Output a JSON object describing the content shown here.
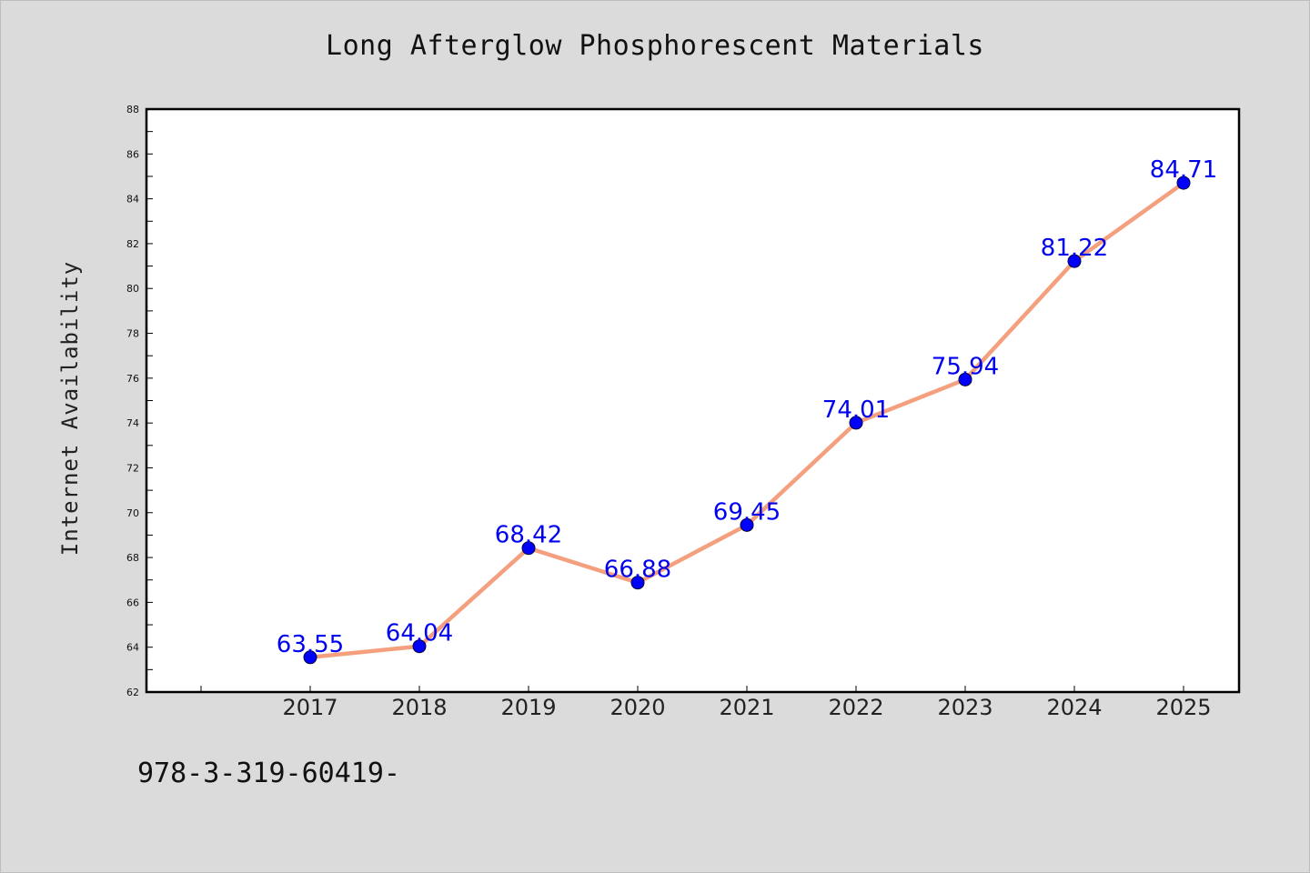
{
  "chart_data": {
    "type": "line",
    "title": "Long Afterglow Phosphorescent Materials",
    "xlabel": "",
    "ylabel": "Internet Availability",
    "x": [
      "2017",
      "2018",
      "2019",
      "2020",
      "2021",
      "2022",
      "2023",
      "2024",
      "2025"
    ],
    "series": [
      {
        "values": [
          63.55,
          64.04,
          68.42,
          66.88,
          69.45,
          74.01,
          75.94,
          81.22,
          84.71
        ],
        "data_labels": [
          "63.55",
          "64.04",
          "68.42",
          "66.88",
          "69.45",
          "74.01",
          "75.94",
          "81.22",
          "84.71"
        ],
        "line_color": "#f4a07e",
        "marker_color": "#0000ff"
      }
    ],
    "ylim": [
      62,
      88
    ],
    "yticks": [
      "62",
      "64",
      "66",
      "68",
      "70",
      "72",
      "74",
      "76",
      "78",
      "80",
      "82",
      "84",
      "86",
      "88"
    ],
    "grid": false,
    "legend": "none",
    "background": "#dbdbdb",
    "plot_background": "#ffffff"
  },
  "footer": {
    "text": "978-3-319-60419-"
  }
}
